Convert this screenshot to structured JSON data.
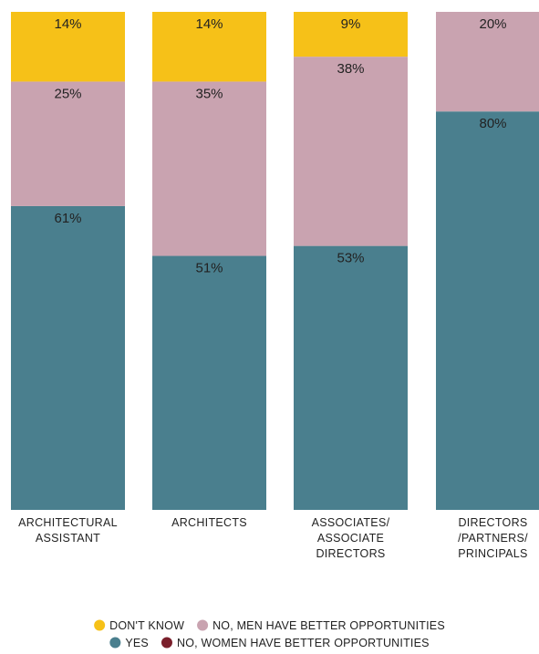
{
  "chart_data": {
    "type": "bar",
    "stacked": true,
    "normalized_percent": true,
    "categories": [
      [
        "ARCHITECTURAL",
        "ASSISTANT"
      ],
      [
        "ARCHITECTS"
      ],
      [
        "ASSOCIATES/",
        "ASSOCIATE",
        "DIRECTORS"
      ],
      [
        "DIRECTORS",
        "/PARTNERS/",
        "PRINCIPALS"
      ]
    ],
    "series": [
      {
        "name": "YES",
        "color": "#4a7f8e",
        "values": [
          61,
          51,
          53,
          80
        ]
      },
      {
        "name": "NO, WOMEN HAVE BETTER OPPORTUNITIES",
        "color": "#7a1f2b",
        "values": [
          0,
          0,
          0,
          0
        ]
      },
      {
        "name": "NO, MEN HAVE BETTER OPPORTUNITIES",
        "color": "#c9a3b0",
        "values": [
          25,
          35,
          38,
          20
        ]
      },
      {
        "name": "DON'T KNOW",
        "color": "#f6c118",
        "values": [
          14,
          14,
          9,
          0
        ]
      }
    ],
    "value_suffix": "%",
    "ylim": [
      0,
      100
    ],
    "grid": false,
    "legend": {
      "position": "bottom",
      "rows": [
        [
          "DON'T KNOW",
          "NO, MEN HAVE BETTER OPPORTUNITIES"
        ],
        [
          "YES",
          "NO, WOMEN HAVE BETTER OPPORTUNITIES"
        ]
      ]
    },
    "title": "",
    "xlabel": "",
    "ylabel": ""
  }
}
